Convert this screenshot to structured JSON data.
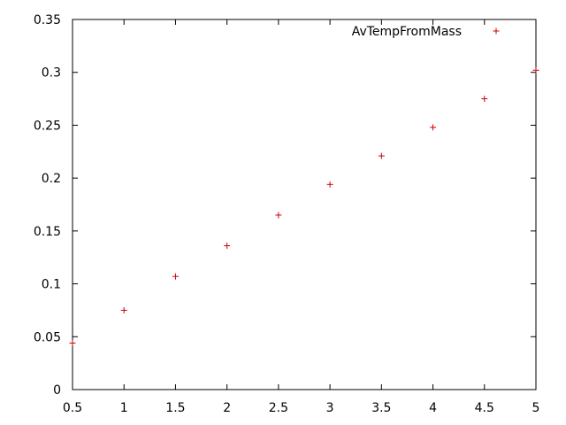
{
  "chart_data": {
    "type": "scatter",
    "title": "",
    "xlabel": "",
    "ylabel": "",
    "xlim": [
      0.5,
      5
    ],
    "ylim": [
      0,
      0.35
    ],
    "xticks": [
      "0.5",
      "1",
      "1.5",
      "2",
      "2.5",
      "3",
      "3.5",
      "4",
      "4.5",
      "5"
    ],
    "yticks": [
      "0",
      "0.05",
      "0.1",
      "0.15",
      "0.2",
      "0.25",
      "0.3",
      "0.35"
    ],
    "grid": false,
    "legend_position": "top-right",
    "series": [
      {
        "name": "AvTempFromMass",
        "color": "#cc0000",
        "marker": "plus",
        "x": [
          0.5,
          1,
          1.5,
          2,
          2.5,
          3,
          3.5,
          4,
          4.5,
          5
        ],
        "y": [
          0.044,
          0.075,
          0.107,
          0.136,
          0.165,
          0.194,
          0.221,
          0.248,
          0.275,
          0.302
        ]
      }
    ]
  }
}
